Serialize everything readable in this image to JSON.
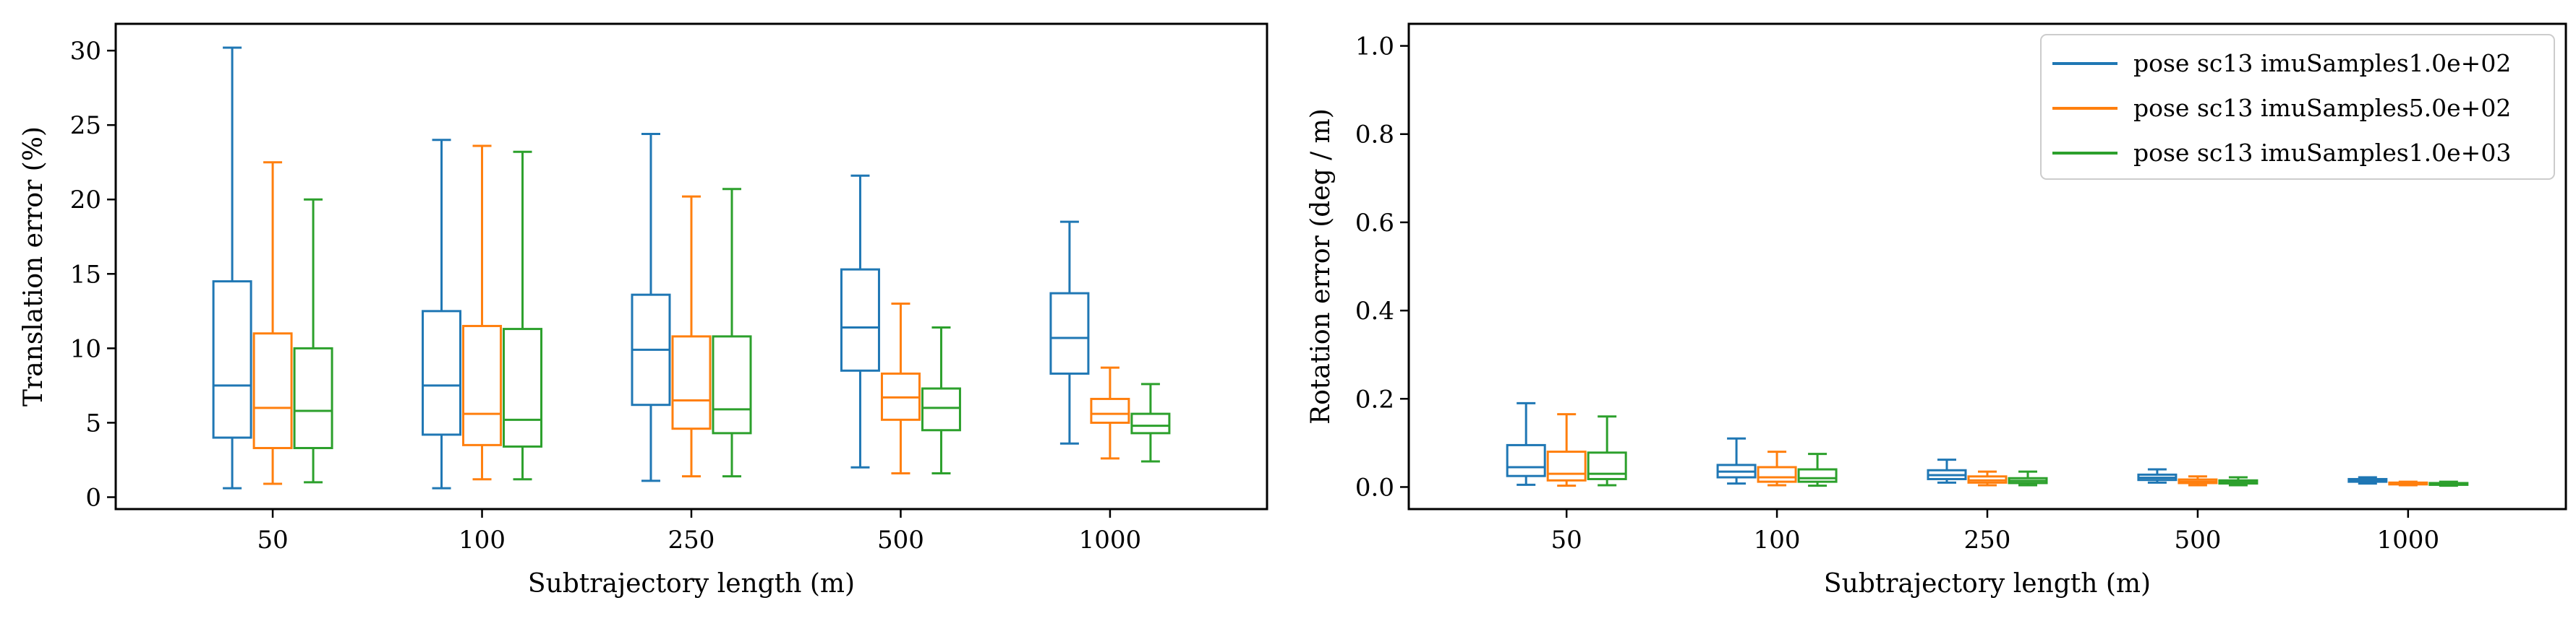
{
  "figure": {
    "colors": [
      "#1f77b4",
      "#ff7f0e",
      "#2ca02c"
    ],
    "legend_position": "top-right of right panel"
  },
  "chart_data": [
    {
      "type": "box",
      "xlabel": "Subtrajectory length (m)",
      "ylabel": "Translation error (%)",
      "categories": [
        "50",
        "100",
        "250",
        "500",
        "1000"
      ],
      "ylim": [
        -0.8,
        31.8
      ],
      "yticks": [
        0,
        5,
        10,
        15,
        20,
        25,
        30
      ],
      "grid": false,
      "series": [
        {
          "name": "pose sc13 imuSamples1.0e+02",
          "boxes": [
            {
              "whislo": 0.6,
              "q1": 4.0,
              "med": 7.5,
              "q3": 14.5,
              "whishi": 30.2
            },
            {
              "whislo": 0.6,
              "q1": 4.2,
              "med": 7.5,
              "q3": 12.5,
              "whishi": 24.0
            },
            {
              "whislo": 1.1,
              "q1": 6.2,
              "med": 9.9,
              "q3": 13.6,
              "whishi": 24.4
            },
            {
              "whislo": 2.0,
              "q1": 8.5,
              "med": 11.4,
              "q3": 15.3,
              "whishi": 21.6
            },
            {
              "whislo": 3.6,
              "q1": 8.3,
              "med": 10.7,
              "q3": 13.7,
              "whishi": 18.5
            }
          ]
        },
        {
          "name": "pose sc13 imuSamples5.0e+02",
          "boxes": [
            {
              "whislo": 0.9,
              "q1": 3.3,
              "med": 6.0,
              "q3": 11.0,
              "whishi": 22.5
            },
            {
              "whislo": 1.2,
              "q1": 3.5,
              "med": 5.6,
              "q3": 11.5,
              "whishi": 23.6
            },
            {
              "whislo": 1.4,
              "q1": 4.6,
              "med": 6.5,
              "q3": 10.8,
              "whishi": 20.2
            },
            {
              "whislo": 1.6,
              "q1": 5.2,
              "med": 6.7,
              "q3": 8.3,
              "whishi": 13.0
            },
            {
              "whislo": 2.6,
              "q1": 5.0,
              "med": 5.6,
              "q3": 6.6,
              "whishi": 8.7
            }
          ]
        },
        {
          "name": "pose sc13 imuSamples1.0e+03",
          "boxes": [
            {
              "whislo": 1.0,
              "q1": 3.3,
              "med": 5.8,
              "q3": 10.0,
              "whishi": 20.0
            },
            {
              "whislo": 1.2,
              "q1": 3.4,
              "med": 5.2,
              "q3": 11.3,
              "whishi": 23.2
            },
            {
              "whislo": 1.4,
              "q1": 4.3,
              "med": 5.9,
              "q3": 10.8,
              "whishi": 20.7
            },
            {
              "whislo": 1.6,
              "q1": 4.5,
              "med": 6.0,
              "q3": 7.3,
              "whishi": 11.4
            },
            {
              "whislo": 2.4,
              "q1": 4.3,
              "med": 4.8,
              "q3": 5.6,
              "whishi": 7.6
            }
          ]
        }
      ]
    },
    {
      "type": "box",
      "xlabel": "Subtrajectory length (m)",
      "ylabel": "Rotation error (deg / m)",
      "categories": [
        "50",
        "100",
        "250",
        "500",
        "1000"
      ],
      "ylim": [
        -0.05,
        1.05
      ],
      "yticks": [
        0.0,
        0.2,
        0.4,
        0.6,
        0.8,
        1.0
      ],
      "ytick_labels": [
        "0.0",
        "0.2",
        "0.4",
        "0.6",
        "0.8",
        "1.0"
      ],
      "grid": false,
      "legend": true,
      "series": [
        {
          "name": "pose sc13 imuSamples1.0e+02",
          "boxes": [
            {
              "whislo": 0.005,
              "q1": 0.025,
              "med": 0.045,
              "q3": 0.095,
              "whishi": 0.19
            },
            {
              "whislo": 0.008,
              "q1": 0.022,
              "med": 0.035,
              "q3": 0.05,
              "whishi": 0.11
            },
            {
              "whislo": 0.01,
              "q1": 0.018,
              "med": 0.027,
              "q3": 0.038,
              "whishi": 0.062
            },
            {
              "whislo": 0.01,
              "q1": 0.016,
              "med": 0.021,
              "q3": 0.028,
              "whishi": 0.04
            },
            {
              "whislo": 0.008,
              "q1": 0.012,
              "med": 0.015,
              "q3": 0.018,
              "whishi": 0.022
            }
          ]
        },
        {
          "name": "pose sc13 imuSamples5.0e+02",
          "boxes": [
            {
              "whislo": 0.003,
              "q1": 0.015,
              "med": 0.03,
              "q3": 0.08,
              "whishi": 0.165
            },
            {
              "whislo": 0.004,
              "q1": 0.012,
              "med": 0.022,
              "q3": 0.045,
              "whishi": 0.08
            },
            {
              "whislo": 0.004,
              "q1": 0.01,
              "med": 0.015,
              "q3": 0.024,
              "whishi": 0.035
            },
            {
              "whislo": 0.004,
              "q1": 0.009,
              "med": 0.012,
              "q3": 0.017,
              "whishi": 0.024
            },
            {
              "whislo": 0.004,
              "q1": 0.006,
              "med": 0.008,
              "q3": 0.01,
              "whishi": 0.012
            }
          ]
        },
        {
          "name": "pose sc13 imuSamples1.0e+03",
          "boxes": [
            {
              "whislo": 0.004,
              "q1": 0.018,
              "med": 0.03,
              "q3": 0.078,
              "whishi": 0.16
            },
            {
              "whislo": 0.003,
              "q1": 0.012,
              "med": 0.02,
              "q3": 0.04,
              "whishi": 0.075
            },
            {
              "whislo": 0.004,
              "q1": 0.009,
              "med": 0.014,
              "q3": 0.02,
              "whishi": 0.035
            },
            {
              "whislo": 0.004,
              "q1": 0.008,
              "med": 0.011,
              "q3": 0.015,
              "whishi": 0.022
            },
            {
              "whislo": 0.003,
              "q1": 0.005,
              "med": 0.007,
              "q3": 0.009,
              "whishi": 0.012
            }
          ]
        }
      ]
    }
  ]
}
